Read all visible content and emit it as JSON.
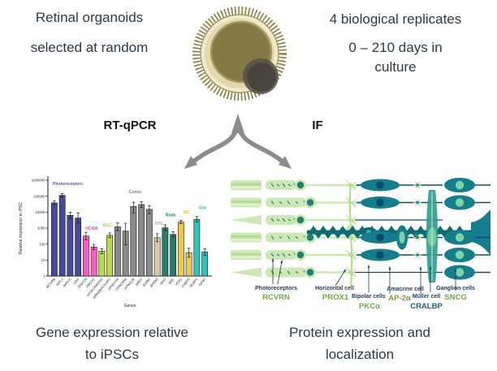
{
  "header": {
    "left_line1": "Retinal organoids",
    "left_line2": "selected at random",
    "right_line1": "4 biological replicates",
    "right_line2": "0 – 210 days in",
    "right_line3": "culture"
  },
  "branches": {
    "left_label": "RT-qPCR",
    "right_label": "IF",
    "arrow_color": "#8c8c8c"
  },
  "organoid": {
    "body_color": "#efead0",
    "ring_color": "#e2d9ae",
    "core_color": "#847a47",
    "vesicle_color": "#46423a",
    "spike_color": "#8a7d3f"
  },
  "chart_data": {
    "type": "bar",
    "y_scale": "log",
    "title": "",
    "xlabel": "Genes",
    "ylabel": "Relative expression to iPSC",
    "ylim": [
      1,
      1000000
    ],
    "yticks": [
      1,
      10,
      100,
      1000,
      10000,
      100000,
      1000000
    ],
    "grid": false,
    "legend": "group labels above bars",
    "groups": [
      {
        "name": "Photoreceptors",
        "color": "#454aa0",
        "label_color": "#5156c8",
        "label_value": 500000,
        "bars": [
          {
            "gene": "RCVRN",
            "value": 38000,
            "err_lo": 30000,
            "err_hi": 50000
          },
          {
            "gene": "AIPL1",
            "value": 112000,
            "err_lo": 90000,
            "err_hi": 145000
          },
          {
            "gene": "IMPG1",
            "value": 6300,
            "err_lo": 4000,
            "err_hi": 10000
          },
          {
            "gene": "CRX",
            "value": 4300,
            "err_lo": 2000,
            "err_hi": 9000
          }
        ]
      },
      {
        "name": "HCAM",
        "color": "#f45fc0",
        "label_color": "#f23cb4",
        "label_value": 800,
        "bars": [
          {
            "gene": "TFAP2A",
            "value": 320,
            "err_lo": 180,
            "err_hi": 550
          },
          {
            "gene": "PROX1",
            "value": 66,
            "err_lo": 45,
            "err_hi": 95
          }
        ]
      },
      {
        "name": "RGC",
        "color": "#bcd94e",
        "label_color": "#b2cf2e",
        "label_value": 1300,
        "bars": [
          {
            "gene": "ATOH7/MATH5",
            "value": 36,
            "err_lo": 25,
            "err_hi": 50
          },
          {
            "gene": "BRN3B/POU4F2",
            "value": 355,
            "err_lo": 250,
            "err_hi": 500
          }
        ]
      },
      {
        "name": "Cones",
        "color": "#8a8a8a",
        "label_color": "#7f7f7f",
        "label_value": 150000,
        "bars": [
          {
            "gene": "OPN1SW",
            "value": 1200,
            "err_lo": 700,
            "err_hi": 2100
          },
          {
            "gene": "OPN1MW",
            "value": 650,
            "err_lo": 90,
            "err_hi": 2000
          },
          {
            "gene": "OPN1LW",
            "value": 23000,
            "err_lo": 9000,
            "err_hi": 42000
          },
          {
            "gene": "ARR3",
            "value": 30000,
            "err_lo": 20000,
            "err_hi": 46000
          },
          {
            "gene": "RXRG",
            "value": 15000,
            "err_lo": 8000,
            "err_hi": 26000
          }
        ]
      },
      {
        "name": "RPE",
        "color": "#d9c9a3",
        "label_color": "#ccb484",
        "label_value": 1600,
        "bars": [
          {
            "gene": "RPE65",
            "value": 250,
            "err_lo": 140,
            "err_hi": 450
          }
        ]
      },
      {
        "name": "Rods",
        "color": "#2a7d6d",
        "label_color": "#1f7a6a",
        "label_value": 5600,
        "bars": [
          {
            "gene": "RHO",
            "value": 1050,
            "err_lo": 700,
            "err_hi": 1600
          },
          {
            "gene": "NRL",
            "value": 400,
            "err_lo": 280,
            "err_hi": 600
          }
        ]
      },
      {
        "name": "BC",
        "color": "#ecc94b",
        "label_color": "#e5b41c",
        "label_value": 8000,
        "bars": [
          {
            "gene": "VSX1",
            "value": 2400,
            "err_lo": 1900,
            "err_hi": 3100
          },
          {
            "gene": "CABP5",
            "value": 29,
            "err_lo": 15,
            "err_hi": 55
          }
        ]
      },
      {
        "name": "Glia",
        "color": "#24c8be",
        "label_color": "#10c5c5",
        "label_value": 16000,
        "bars": [
          {
            "gene": "RLBP1",
            "value": 3500,
            "err_lo": 2500,
            "err_hi": 5300
          },
          {
            "gene": "GFAP",
            "value": 32,
            "err_lo": 20,
            "err_hi": 50
          }
        ]
      }
    ]
  },
  "retina": {
    "cell_label_color": "#1f3b5c",
    "labels": [
      {
        "cell": "Photoreceptors",
        "gene": "RCVRN",
        "gene_color": "#6faa3d"
      },
      {
        "cell": "Horizontal cell",
        "gene": "PROX1",
        "gene_color": "#6faa3d"
      },
      {
        "cell": "Bipolar cells",
        "gene": "PKCα",
        "gene_color": "#6faa3d"
      },
      {
        "cell": "Amacrine cell",
        "gene": "AP-2α",
        "gene_color": "#7a9a3a"
      },
      {
        "cell": "Müller cell",
        "gene": "CRALBP",
        "gene_color": "#24606b"
      },
      {
        "cell": "Ganglion cells",
        "gene": "SNCG",
        "gene_color": "#6faa3d"
      }
    ]
  },
  "captions": {
    "left_line1": "Gene expression relative",
    "left_line2": "to iPSCs",
    "right_line1": "Protein expression and",
    "right_line2": "localization"
  }
}
